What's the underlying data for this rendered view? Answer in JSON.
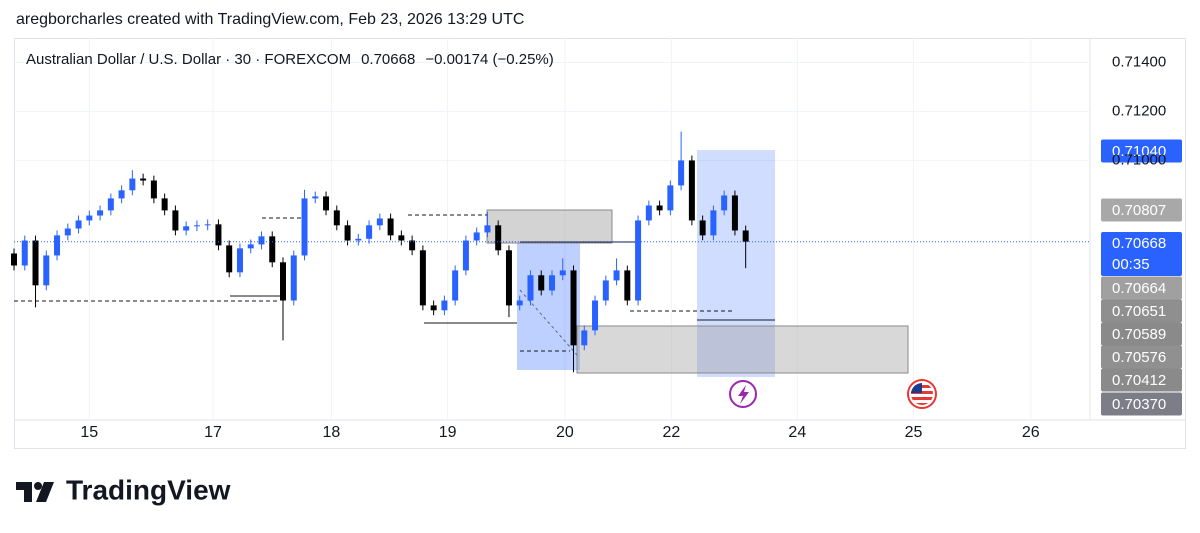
{
  "header": {
    "credit": "aregborcharles created with TradingView.com, Feb 23, 2026 13:29 UTC",
    "brand": "TradingView"
  },
  "chart_data": {
    "type": "candlestick",
    "title": "Australian Dollar / U.S. Dollar · 30 · FOREXCOM",
    "last_price": "0.70668",
    "change": "−0.00174 (−0.25%)",
    "up_color": "#2962ff",
    "down_color": "#000000",
    "grid": true,
    "xlim": [
      0,
      100
    ],
    "ylim": [
      0.6994,
      0.715
    ],
    "xticks": [
      {
        "value": 7,
        "label": "15"
      },
      {
        "value": 18.5,
        "label": "17"
      },
      {
        "value": 29.5,
        "label": "18"
      },
      {
        "value": 40.3,
        "label": "19"
      },
      {
        "value": 51.2,
        "label": "20"
      },
      {
        "value": 61.1,
        "label": "22"
      },
      {
        "value": 72.8,
        "label": "24"
      },
      {
        "value": 83.6,
        "label": "25"
      },
      {
        "value": 94.5,
        "label": "26"
      }
    ],
    "yticks": [
      {
        "value": 0.714,
        "label": "0.71400"
      },
      {
        "value": 0.712,
        "label": "0.71200"
      },
      {
        "value": 0.71,
        "label": "0.71000"
      }
    ],
    "x": [
      0,
      1,
      2,
      3,
      4,
      5,
      6,
      7,
      8,
      9,
      10,
      11,
      12,
      13,
      14,
      15,
      16,
      17,
      18,
      19,
      20,
      21,
      22,
      23,
      24,
      25,
      26,
      27,
      28,
      29,
      30,
      31,
      32,
      33,
      34,
      35,
      36,
      37,
      38,
      39,
      40,
      41,
      42,
      43,
      44,
      45,
      46,
      47,
      48,
      49,
      50,
      51,
      52,
      53,
      54,
      55,
      56,
      57,
      58,
      59,
      60,
      61,
      62,
      63,
      64,
      65,
      66,
      67,
      68
    ],
    "open": [
      0.7062,
      0.70571,
      0.70673,
      0.7049,
      0.70612,
      0.70694,
      0.70722,
      0.70755,
      0.70775,
      0.70796,
      0.70845,
      0.70878,
      0.70926,
      0.70918,
      0.70845,
      0.70796,
      0.70714,
      0.70731,
      0.70735,
      0.70739,
      0.70653,
      0.70543,
      0.70641,
      0.70657,
      0.7069,
      0.70584,
      0.70428,
      0.70612,
      0.70845,
      0.70853,
      0.70796,
      0.70735,
      0.70673,
      0.7068,
      0.70735,
      0.70763,
      0.70694,
      0.70673,
      0.70633,
      0.70408,
      0.70388,
      0.70428,
      0.70551,
      0.70673,
      0.70706,
      0.70735,
      0.70633,
      0.70408,
      0.70428,
      0.70531,
      0.70469,
      0.70531,
      0.70551,
      0.70245,
      0.70306,
      0.70428,
      0.7051,
      0.70551,
      0.70428,
      0.70755,
      0.70816,
      0.70796,
      0.70898,
      0.71,
      0.70755,
      0.70694,
      0.70796,
      0.70857,
      0.70714
    ],
    "high": [
      0.7064,
      0.70693,
      0.70693,
      0.70632,
      0.70714,
      0.70742,
      0.70775,
      0.70795,
      0.70816,
      0.70865,
      0.70898,
      0.7096,
      0.70946,
      0.70938,
      0.70865,
      0.70816,
      0.70751,
      0.70755,
      0.70759,
      0.70759,
      0.70673,
      0.70661,
      0.70677,
      0.7071,
      0.7071,
      0.70604,
      0.70632,
      0.7088,
      0.70873,
      0.70873,
      0.70816,
      0.70755,
      0.707,
      0.70755,
      0.70783,
      0.70783,
      0.70714,
      0.70693,
      0.70653,
      0.70428,
      0.70448,
      0.70571,
      0.70693,
      0.70726,
      0.7079,
      0.70755,
      0.70653,
      0.70448,
      0.70551,
      0.70551,
      0.70551,
      0.706,
      0.70571,
      0.70326,
      0.70448,
      0.7053,
      0.706,
      0.70571,
      0.70775,
      0.70836,
      0.70836,
      0.70918,
      0.71118,
      0.7102,
      0.70775,
      0.70816,
      0.70877,
      0.70877,
      0.70734
    ],
    "low": [
      0.70551,
      0.70551,
      0.704,
      0.7047,
      0.70592,
      0.70674,
      0.70702,
      0.70735,
      0.70755,
      0.70776,
      0.70825,
      0.70858,
      0.70898,
      0.70825,
      0.70776,
      0.70694,
      0.70694,
      0.70711,
      0.70715,
      0.70633,
      0.70523,
      0.70523,
      0.70621,
      0.70637,
      0.70564,
      0.70265,
      0.70408,
      0.70592,
      0.70825,
      0.70776,
      0.70715,
      0.70653,
      0.70653,
      0.7066,
      0.70715,
      0.70674,
      0.70653,
      0.70613,
      0.70388,
      0.70368,
      0.70368,
      0.70408,
      0.70531,
      0.70653,
      0.70686,
      0.70613,
      0.7036,
      0.70388,
      0.70408,
      0.70449,
      0.70449,
      0.70511,
      0.70135,
      0.70225,
      0.70286,
      0.70408,
      0.7049,
      0.70408,
      0.70408,
      0.70735,
      0.70776,
      0.70776,
      0.70878,
      0.70735,
      0.70674,
      0.70674,
      0.70776,
      0.70694,
      0.7056
    ],
    "close": [
      0.70571,
      0.70673,
      0.7049,
      0.70612,
      0.70694,
      0.70722,
      0.70755,
      0.70775,
      0.70796,
      0.70845,
      0.70878,
      0.70926,
      0.70918,
      0.70845,
      0.70796,
      0.70714,
      0.70731,
      0.70735,
      0.70739,
      0.70653,
      0.70543,
      0.70641,
      0.70657,
      0.7069,
      0.70584,
      0.70428,
      0.70612,
      0.70845,
      0.70853,
      0.70796,
      0.70735,
      0.70673,
      0.7068,
      0.70735,
      0.70763,
      0.70694,
      0.70673,
      0.70633,
      0.70408,
      0.70388,
      0.70428,
      0.70551,
      0.70673,
      0.70706,
      0.70735,
      0.70633,
      0.70408,
      0.70428,
      0.70531,
      0.70469,
      0.70531,
      0.70551,
      0.70245,
      0.70306,
      0.70428,
      0.7051,
      0.70551,
      0.70428,
      0.70755,
      0.70816,
      0.70796,
      0.70898,
      0.71,
      0.70755,
      0.70694,
      0.70796,
      0.70857,
      0.70714,
      0.70668
    ],
    "price_tags": [
      {
        "value": 0.7104,
        "label": "0.71040",
        "color": "#2962ff"
      },
      {
        "value": 0.70807,
        "label": "0.70807",
        "color": "#a8a8a8"
      },
      {
        "value": 0.70668,
        "label": "0.70668",
        "color": "#2962ff",
        "countdown": "00:35"
      },
      {
        "value": 0.70664,
        "label": "0.70664",
        "color": "#a0a0a0"
      },
      {
        "value": 0.70651,
        "label": "0.70651",
        "color": "#8f8f8f"
      },
      {
        "value": 0.70589,
        "label": "0.70589",
        "color": "#8a8a8a"
      },
      {
        "value": 0.70576,
        "label": "0.70576",
        "color": "#909090"
      },
      {
        "value": 0.70412,
        "label": "0.70412",
        "color": "#8a8a8a"
      },
      {
        "value": 0.7037,
        "label": "0.70370",
        "color": "#7d7d88"
      }
    ]
  }
}
